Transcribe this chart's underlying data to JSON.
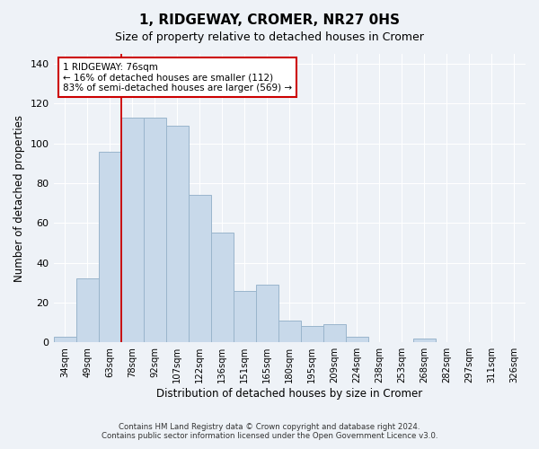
{
  "title": "1, RIDGEWAY, CROMER, NR27 0HS",
  "subtitle": "Size of property relative to detached houses in Cromer",
  "xlabel": "Distribution of detached houses by size in Cromer",
  "ylabel": "Number of detached properties",
  "bar_color": "#c8d9ea",
  "bar_edge_color": "#9ab5cc",
  "categories": [
    "34sqm",
    "49sqm",
    "63sqm",
    "78sqm",
    "92sqm",
    "107sqm",
    "122sqm",
    "136sqm",
    "151sqm",
    "165sqm",
    "180sqm",
    "195sqm",
    "209sqm",
    "224sqm",
    "238sqm",
    "253sqm",
    "268sqm",
    "282sqm",
    "297sqm",
    "311sqm",
    "326sqm"
  ],
  "values": [
    3,
    32,
    96,
    113,
    113,
    109,
    74,
    55,
    26,
    29,
    11,
    8,
    9,
    3,
    0,
    0,
    2,
    0,
    0,
    0,
    0
  ],
  "marker_bar_index": 3,
  "marker_line_color": "#cc0000",
  "annotation_line1": "1 RIDGEWAY: 76sqm",
  "annotation_line2": "← 16% of detached houses are smaller (112)",
  "annotation_line3": "83% of semi-detached houses are larger (569) →",
  "annotation_box_color": "#ffffff",
  "annotation_box_edge_color": "#cc0000",
  "ylim": [
    0,
    145
  ],
  "yticks": [
    0,
    20,
    40,
    60,
    80,
    100,
    120,
    140
  ],
  "footer1": "Contains HM Land Registry data © Crown copyright and database right 2024.",
  "footer2": "Contains public sector information licensed under the Open Government Licence v3.0.",
  "background_color": "#eef2f7",
  "grid_color": "#ffffff"
}
